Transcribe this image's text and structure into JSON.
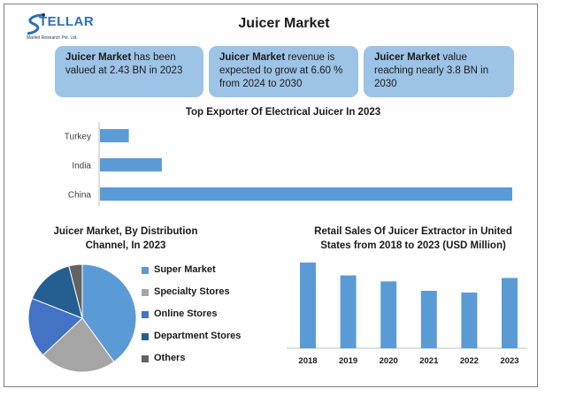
{
  "header": {
    "title": "Juicer Market",
    "logo_text": "TELLAR",
    "logo_initial": "S",
    "logo_tagline": "Market Research Pvt. Ltd."
  },
  "boxes": [
    {
      "bold": "Juicer Market",
      "text": " has been valued at 2.43 BN in 2023"
    },
    {
      "bold": "Juicer Market",
      "text": " revenue is expected to grow at 6.60 % from 2024 to 2030"
    },
    {
      "bold": "Juicer Market",
      "text": " value reaching nearly 3.8 BN in 2030"
    }
  ],
  "colors": {
    "box_fill": "#9dc3e6",
    "bar": "#5b9bd5",
    "super_market": "#5b9bd5",
    "specialty_stores": "#a5a5a5",
    "online_stores": "#4472c4",
    "department_stores": "#255e91",
    "others": "#636363"
  },
  "chart_data": [
    {
      "type": "bar",
      "orientation": "horizontal",
      "title": "Top Exporter Of Electrical Juicer In 2023",
      "categories": [
        "Turkey",
        "India",
        "China"
      ],
      "values": [
        7,
        15,
        100
      ],
      "xlim": [
        0,
        100
      ],
      "grid": false,
      "legend": "none"
    },
    {
      "type": "pie",
      "title": "Juicer Market, By Distribution Channel, In 2023",
      "labels": [
        "Super Market",
        "Specialty Stores",
        "Online Stores",
        "Department Stores",
        "Others"
      ],
      "values": [
        40,
        23,
        18,
        15,
        4
      ],
      "legend": "right"
    },
    {
      "type": "bar",
      "title": "Retail Sales Of Juicer Extractor in United States from 2018 to 2023 (USD Million)",
      "categories": [
        "2018",
        "2019",
        "2020",
        "2021",
        "2022",
        "2023"
      ],
      "values": [
        100,
        85,
        78,
        67,
        65,
        82
      ],
      "ylim": [
        0,
        100
      ],
      "grid": false,
      "legend": "none"
    }
  ]
}
